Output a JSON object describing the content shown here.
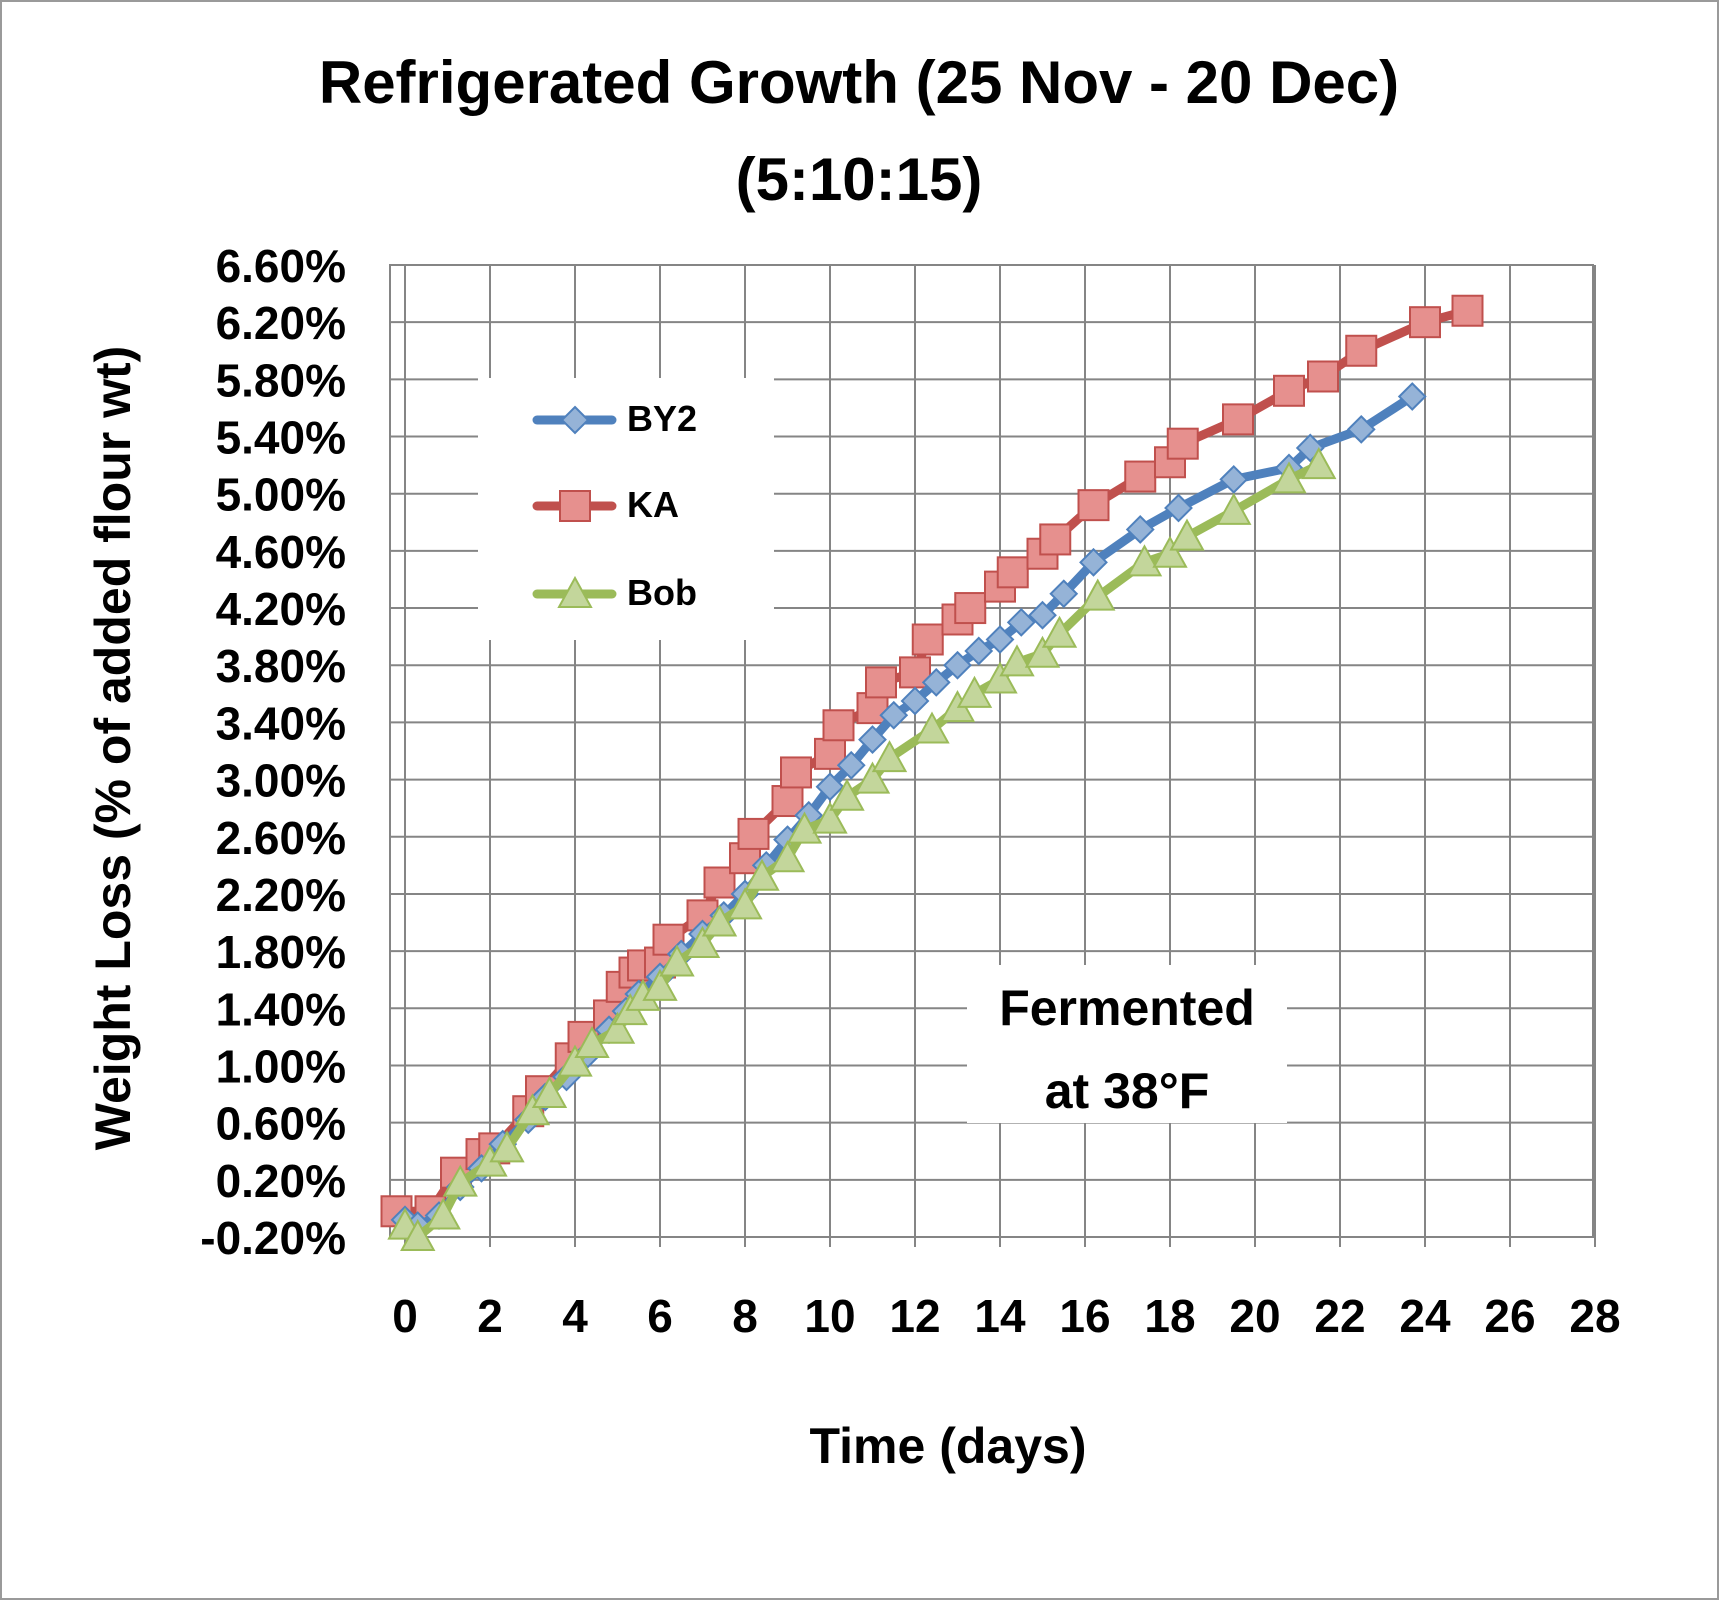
{
  "chart_data": {
    "type": "line",
    "title_lines": [
      "Refrigerated Growth (25 Nov - 20 Dec)",
      "(5:10:15)"
    ],
    "xlabel": "Time (days)",
    "ylabel": "Weight Loss (% of added flour wt)",
    "xlim": [
      0,
      28
    ],
    "ylim": [
      -0.2,
      6.6
    ],
    "x_ticks": [
      0,
      2,
      4,
      6,
      8,
      10,
      12,
      14,
      16,
      18,
      20,
      22,
      24,
      26,
      28
    ],
    "x_tick_labels": [
      "0",
      "2",
      "4",
      "6",
      "8",
      "10",
      "12",
      "14",
      "16",
      "18",
      "20",
      "22",
      "24",
      "26",
      "28"
    ],
    "y_ticks": [
      -0.2,
      0.2,
      0.6,
      1.0,
      1.4,
      1.8,
      2.2,
      2.6,
      3.0,
      3.4,
      3.8,
      4.2,
      4.6,
      5.0,
      5.4,
      5.8,
      6.2,
      6.6
    ],
    "y_tick_labels": [
      "-0.20%",
      "0.20%",
      "0.60%",
      "1.00%",
      "1.40%",
      "1.80%",
      "2.20%",
      "2.60%",
      "3.00%",
      "3.40%",
      "3.80%",
      "4.20%",
      "4.60%",
      "5.00%",
      "5.40%",
      "5.80%",
      "6.20%",
      "6.60%"
    ],
    "grid": true,
    "legend_position": "top-left",
    "annotation_lines": [
      "Fermented",
      "at 38°F"
    ],
    "series": [
      {
        "name": "BY2",
        "color": "#4f81bd",
        "fill": "#95b3d7",
        "marker": "diamond",
        "x": [
          0.0,
          0.3,
          0.8,
          1.3,
          1.8,
          2.3,
          2.9,
          3.3,
          3.8,
          4.3,
          4.8,
          5.2,
          5.5,
          6.0,
          6.5,
          7.0,
          7.5,
          8.0,
          8.5,
          9.0,
          9.5,
          10.0,
          10.5,
          11.0,
          11.5,
          12.0,
          12.5,
          13.0,
          13.5,
          14.0,
          14.5,
          15.0,
          15.5,
          16.2,
          17.3,
          18.2,
          19.5,
          20.8,
          21.3,
          22.5,
          23.7
        ],
        "values": [
          -0.08,
          -0.12,
          -0.05,
          0.15,
          0.28,
          0.45,
          0.62,
          0.78,
          0.92,
          1.08,
          1.25,
          1.38,
          1.5,
          1.62,
          1.78,
          1.92,
          2.05,
          2.2,
          2.4,
          2.58,
          2.75,
          2.95,
          3.1,
          3.28,
          3.45,
          3.55,
          3.68,
          3.8,
          3.9,
          3.98,
          4.1,
          4.15,
          4.3,
          4.52,
          4.75,
          4.9,
          5.1,
          5.18,
          5.32,
          5.45,
          5.68
        ]
      },
      {
        "name": "KA",
        "color": "#c0504d",
        "fill": "#e6908e",
        "marker": "square",
        "x": [
          -0.2,
          0.6,
          1.2,
          1.8,
          2.1,
          2.9,
          3.2,
          3.9,
          4.2,
          4.8,
          5.1,
          5.4,
          5.6,
          6.0,
          6.2,
          7.0,
          7.4,
          8.0,
          8.2,
          9.0,
          9.2,
          10.0,
          10.2,
          11.0,
          11.2,
          12.0,
          12.3,
          13.0,
          13.3,
          14.0,
          14.3,
          15.0,
          15.3,
          16.2,
          17.3,
          18.0,
          18.3,
          19.6,
          20.8,
          21.6,
          22.5,
          24.0,
          25.0
        ],
        "values": [
          -0.02,
          -0.02,
          0.25,
          0.38,
          0.42,
          0.68,
          0.82,
          1.05,
          1.2,
          1.35,
          1.55,
          1.65,
          1.7,
          1.72,
          1.88,
          2.05,
          2.28,
          2.45,
          2.62,
          2.85,
          3.05,
          3.18,
          3.38,
          3.5,
          3.68,
          3.75,
          3.98,
          4.12,
          4.2,
          4.35,
          4.45,
          4.58,
          4.68,
          4.92,
          5.12,
          5.22,
          5.35,
          5.52,
          5.72,
          5.82,
          6.0,
          6.2,
          6.28
        ]
      },
      {
        "name": "Bob",
        "color": "#9bbb59",
        "fill": "#c3d69b",
        "marker": "triangle",
        "x": [
          0.0,
          0.3,
          0.9,
          1.3,
          2.0,
          2.4,
          3.0,
          3.4,
          4.0,
          4.4,
          5.0,
          5.3,
          5.6,
          6.0,
          6.4,
          7.0,
          7.4,
          8.0,
          8.4,
          9.0,
          9.4,
          10.0,
          10.4,
          11.0,
          11.4,
          12.4,
          13.0,
          13.4,
          14.0,
          14.4,
          15.0,
          15.4,
          16.3,
          17.4,
          18.0,
          18.4,
          19.5,
          20.8,
          21.5
        ],
        "values": [
          -0.12,
          -0.2,
          -0.05,
          0.18,
          0.32,
          0.42,
          0.68,
          0.8,
          1.02,
          1.15,
          1.25,
          1.38,
          1.48,
          1.55,
          1.72,
          1.85,
          2.0,
          2.12,
          2.32,
          2.45,
          2.65,
          2.72,
          2.88,
          3.0,
          3.15,
          3.35,
          3.5,
          3.6,
          3.7,
          3.82,
          3.88,
          4.02,
          4.28,
          4.52,
          4.58,
          4.7,
          4.88,
          5.1,
          5.2
        ]
      }
    ]
  }
}
